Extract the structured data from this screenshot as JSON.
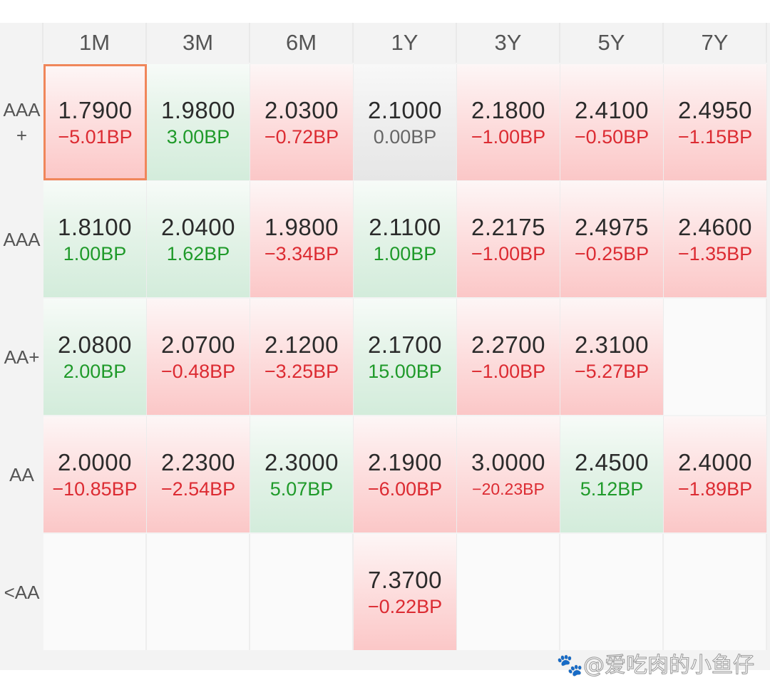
{
  "columns": [
    "1M",
    "3M",
    "6M",
    "1Y",
    "3Y",
    "5Y",
    "7Y"
  ],
  "rows": [
    {
      "label": "AAA\n+",
      "cells": [
        {
          "value": "1.7900",
          "change": "−5.01BP",
          "trend": "neg",
          "selected": true
        },
        {
          "value": "1.9800",
          "change": "3.00BP",
          "trend": "pos"
        },
        {
          "value": "2.0300",
          "change": "−0.72BP",
          "trend": "neg"
        },
        {
          "value": "2.1000",
          "change": "0.00BP",
          "trend": "zero"
        },
        {
          "value": "2.1800",
          "change": "−1.00BP",
          "trend": "neg"
        },
        {
          "value": "2.4100",
          "change": "−0.50BP",
          "trend": "neg"
        },
        {
          "value": "2.4950",
          "change": "−1.15BP",
          "trend": "neg"
        }
      ]
    },
    {
      "label": "AAA",
      "cells": [
        {
          "value": "1.8100",
          "change": "1.00BP",
          "trend": "pos"
        },
        {
          "value": "2.0400",
          "change": "1.62BP",
          "trend": "pos"
        },
        {
          "value": "1.9800",
          "change": "−3.34BP",
          "trend": "neg"
        },
        {
          "value": "2.1100",
          "change": "1.00BP",
          "trend": "pos"
        },
        {
          "value": "2.2175",
          "change": "−1.00BP",
          "trend": "neg"
        },
        {
          "value": "2.4975",
          "change": "−0.25BP",
          "trend": "neg"
        },
        {
          "value": "2.4600",
          "change": "−1.35BP",
          "trend": "neg"
        }
      ]
    },
    {
      "label": "AA+",
      "cells": [
        {
          "value": "2.0800",
          "change": "2.00BP",
          "trend": "pos"
        },
        {
          "value": "2.0700",
          "change": "−0.48BP",
          "trend": "neg"
        },
        {
          "value": "2.1200",
          "change": "−3.25BP",
          "trend": "neg"
        },
        {
          "value": "2.1700",
          "change": "15.00BP",
          "trend": "pos"
        },
        {
          "value": "2.2700",
          "change": "−1.00BP",
          "trend": "neg"
        },
        {
          "value": "2.3100",
          "change": "−5.27BP",
          "trend": "neg"
        },
        null
      ]
    },
    {
      "label": "AA",
      "cells": [
        {
          "value": "2.0000",
          "change": "−10.85BP",
          "trend": "neg"
        },
        {
          "value": "2.2300",
          "change": "−2.54BP",
          "trend": "neg"
        },
        {
          "value": "2.3000",
          "change": "5.07BP",
          "trend": "pos"
        },
        {
          "value": "2.1900",
          "change": "−6.00BP",
          "trend": "neg"
        },
        {
          "value": "3.0000",
          "change": "−20.23BP",
          "trend": "neg",
          "small": true
        },
        {
          "value": "2.4500",
          "change": "5.12BP",
          "trend": "pos"
        },
        {
          "value": "2.4000",
          "change": "−1.89BP",
          "trend": "neg"
        }
      ]
    },
    {
      "label": "<AA",
      "cells": [
        null,
        null,
        null,
        {
          "value": "7.3700",
          "change": "−0.22BP",
          "trend": "neg"
        },
        null,
        null,
        null
      ]
    }
  ],
  "colors": {
    "negative": "#dc2b32",
    "positive": "#1f9a2a",
    "selected_border": "#f0865a"
  },
  "watermark": "🐾@爱吃肉的小鱼仔"
}
